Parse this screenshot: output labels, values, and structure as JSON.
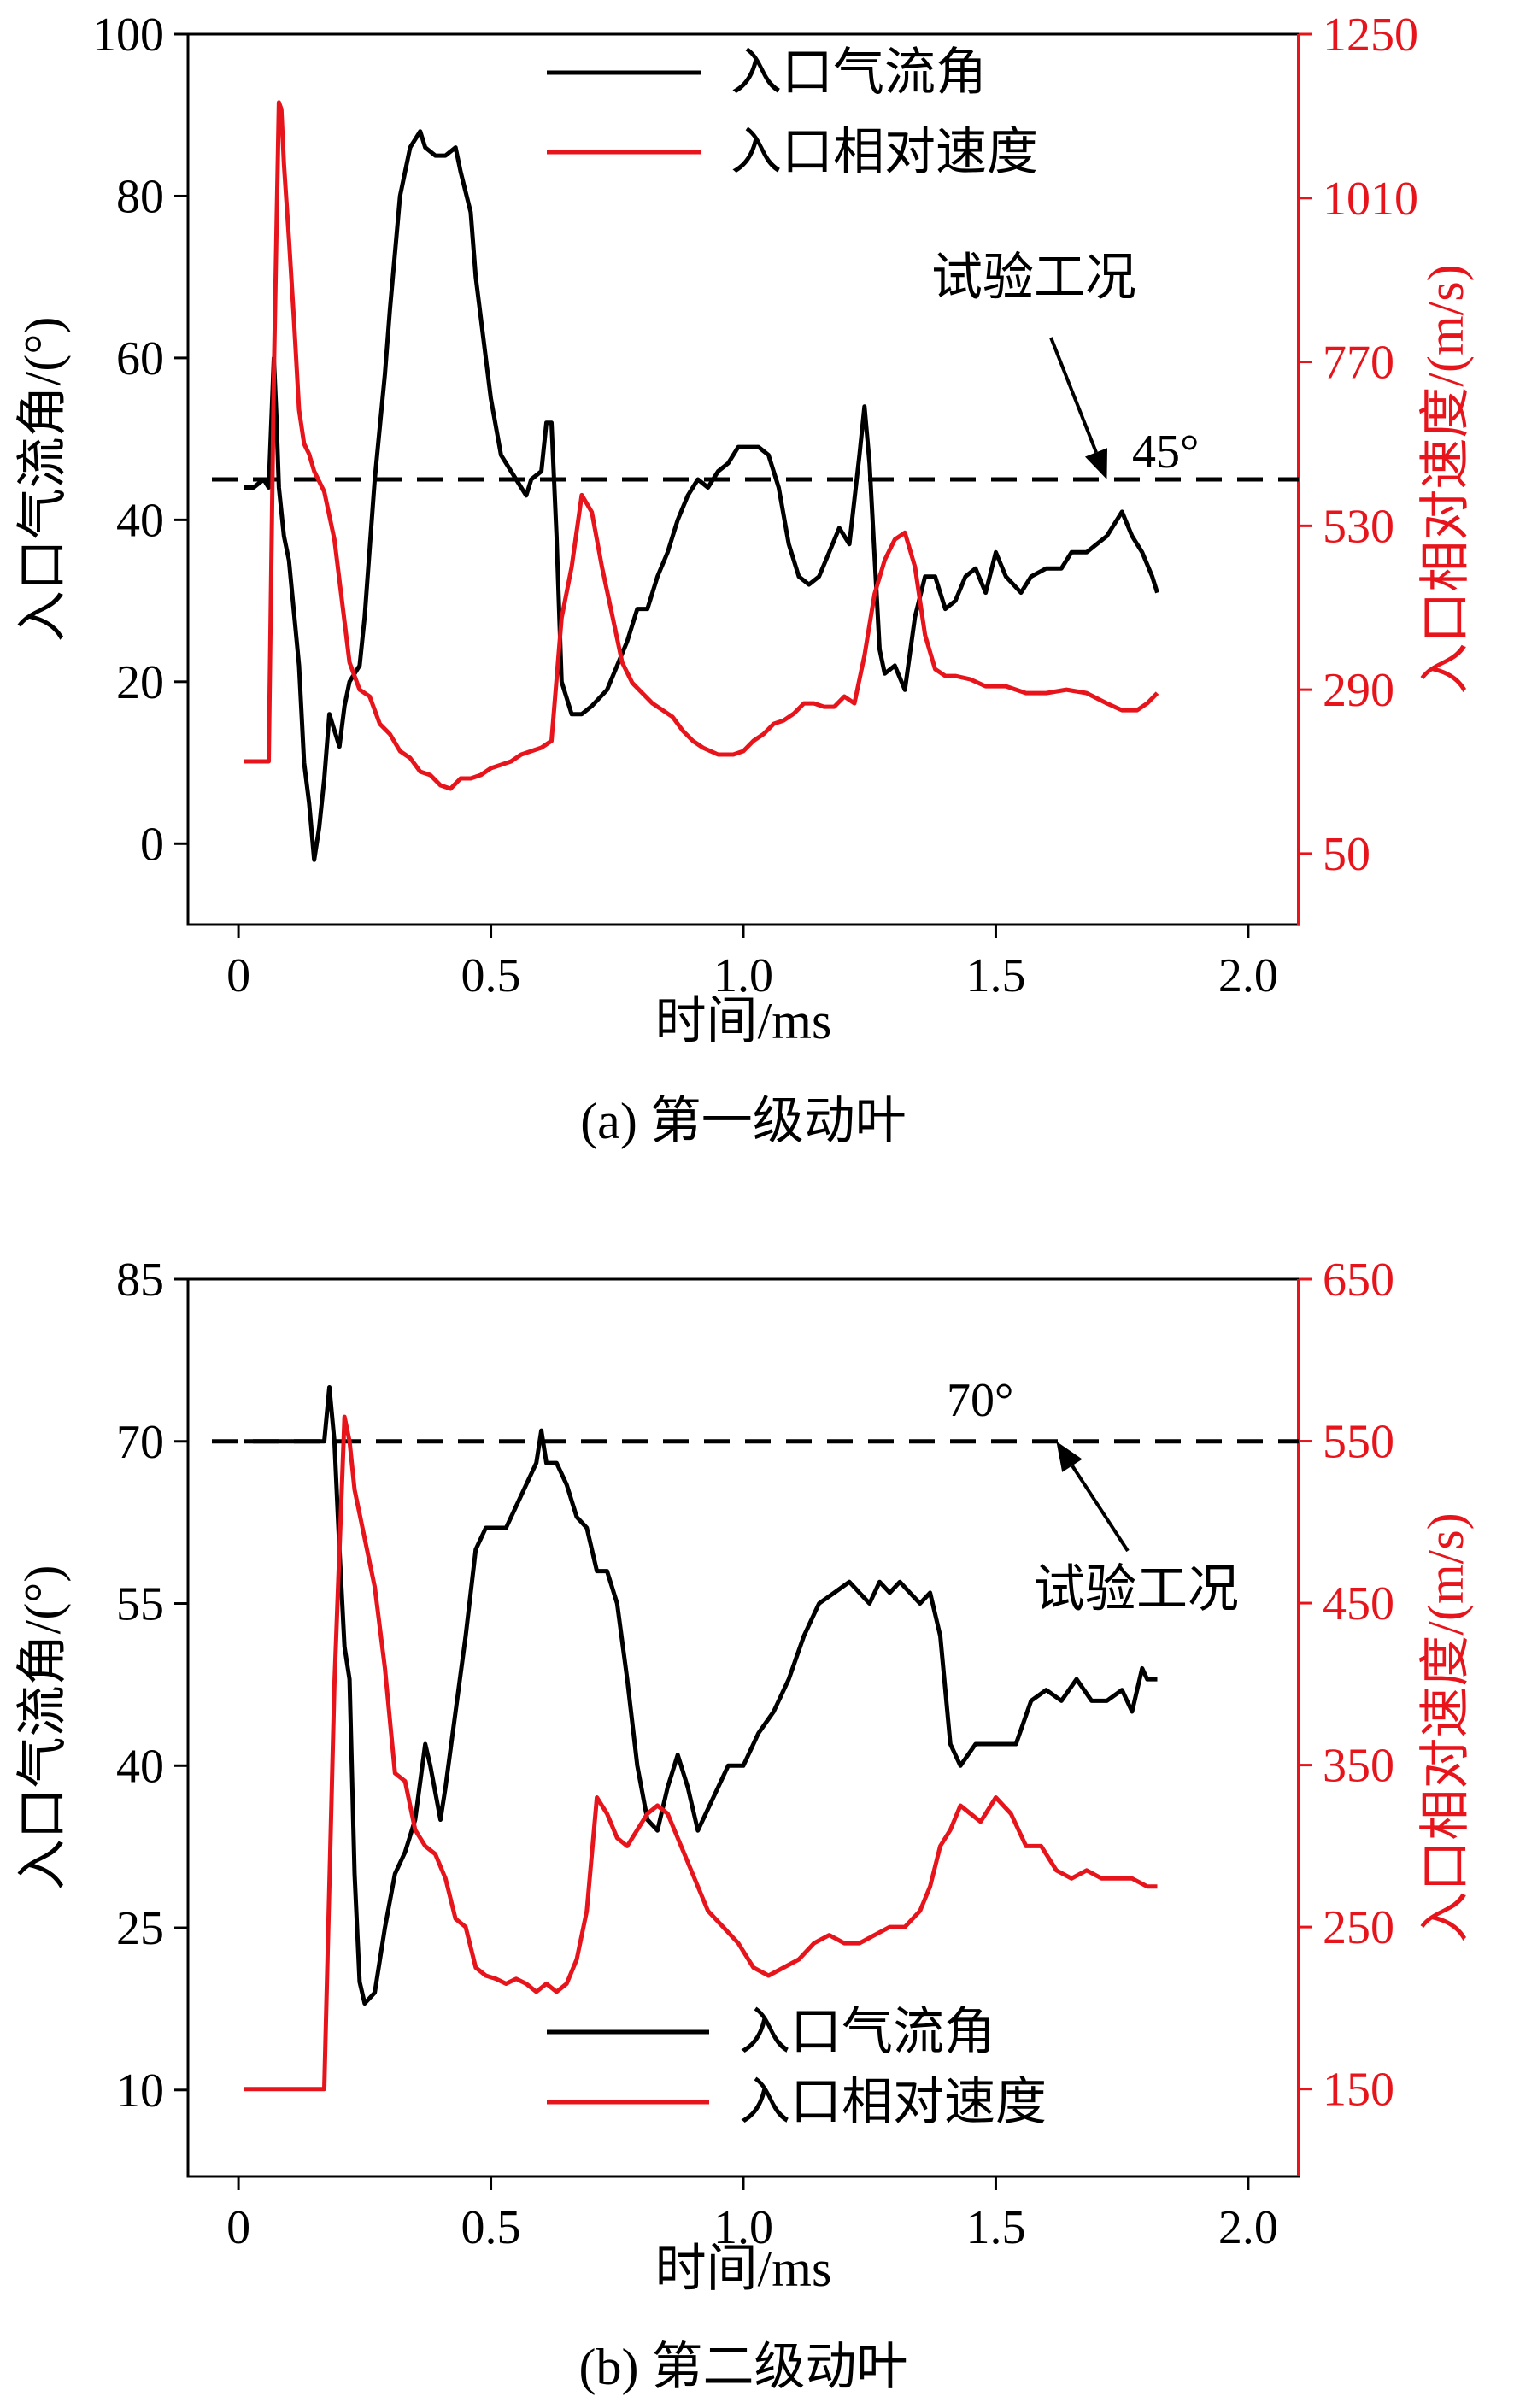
{
  "chart_data": [
    {
      "type": "line",
      "caption": "(a) 第一级动叶",
      "xlabel": "时间/ms",
      "ylabel": "入口气流角/(°)",
      "y2label": "入口相对速度/(m/s)",
      "xlim": [
        -0.1,
        2.1
      ],
      "ylim": [
        -10,
        100
      ],
      "y2lim": [
        -54,
        1250
      ],
      "xticks": [
        "0",
        "0.5",
        "1.0",
        "1.5",
        "2.0"
      ],
      "xtick_values": [
        0,
        0.5,
        1.0,
        1.5,
        2.0
      ],
      "yticks": [
        "0",
        "20",
        "40",
        "60",
        "80",
        "100"
      ],
      "ytick_values": [
        0,
        20,
        40,
        60,
        80,
        100
      ],
      "y2ticks": [
        "50",
        "290",
        "530",
        "770",
        "1010",
        "1250"
      ],
      "y2tick_values": [
        50,
        290,
        530,
        770,
        1010,
        1250
      ],
      "legend_position": "top-center",
      "colors": {
        "angle": "#000000",
        "velocity": "#e8141b",
        "axis2": "#e8141b"
      },
      "reference_line": {
        "y": 45,
        "label": "45°",
        "style": "dashed"
      },
      "annotation": {
        "text": "试验工况",
        "points_to": [
          1.72,
          45
        ]
      },
      "series": [
        {
          "name": "入口气流角",
          "axis": "left",
          "color": "#000000",
          "x": [
            0.01,
            0.03,
            0.05,
            0.06,
            0.065,
            0.07,
            0.075,
            0.08,
            0.09,
            0.1,
            0.12,
            0.13,
            0.14,
            0.15,
            0.16,
            0.17,
            0.18,
            0.19,
            0.2,
            0.21,
            0.22,
            0.23,
            0.24,
            0.25,
            0.27,
            0.29,
            0.3,
            0.32,
            0.34,
            0.36,
            0.37,
            0.39,
            0.41,
            0.43,
            0.44,
            0.46,
            0.47,
            0.49,
            0.5,
            0.52,
            0.55,
            0.57,
            0.58,
            0.6,
            0.61,
            0.62,
            0.63,
            0.64,
            0.66,
            0.68,
            0.7,
            0.73,
            0.75,
            0.77,
            0.79,
            0.81,
            0.83,
            0.85,
            0.87,
            0.89,
            0.91,
            0.93,
            0.95,
            0.97,
            0.99,
            1.01,
            1.03,
            1.05,
            1.07,
            1.09,
            1.11,
            1.13,
            1.15,
            1.17,
            1.19,
            1.21,
            1.23,
            1.24,
            1.25,
            1.27,
            1.28,
            1.3,
            1.32,
            1.34,
            1.36,
            1.38,
            1.4,
            1.42,
            1.44,
            1.46,
            1.48,
            1.5,
            1.52,
            1.55,
            1.57,
            1.6,
            1.63,
            1.65,
            1.68,
            1.7,
            1.72,
            1.75,
            1.77,
            1.79,
            1.81,
            1.82
          ],
          "y": [
            44,
            44,
            45,
            44,
            52,
            60,
            53,
            44,
            38,
            35,
            22,
            10,
            5,
            -2,
            2,
            8,
            16,
            14,
            12,
            17,
            20,
            21,
            22,
            28,
            45,
            58,
            66,
            80,
            86,
            88,
            86,
            85,
            85,
            86,
            83,
            78,
            70,
            60,
            55,
            48,
            45,
            43,
            45,
            46,
            52,
            52,
            38,
            20,
            16,
            16,
            17,
            19,
            22,
            25,
            29,
            29,
            33,
            36,
            40,
            43,
            45,
            44,
            46,
            47,
            49,
            49,
            49,
            48,
            44,
            37,
            33,
            32,
            33,
            36,
            39,
            37,
            48,
            54,
            47,
            24,
            21,
            22,
            19,
            28,
            33,
            33,
            29,
            30,
            33,
            34,
            31,
            36,
            33,
            31,
            33,
            34,
            34,
            36,
            36,
            37,
            38,
            41,
            38,
            36,
            33,
            31
          ]
        },
        {
          "name": "入口相对速度",
          "axis": "right",
          "color": "#e8141b",
          "x": [
            0.01,
            0.03,
            0.05,
            0.06,
            0.07,
            0.075,
            0.08,
            0.085,
            0.09,
            0.1,
            0.11,
            0.12,
            0.13,
            0.14,
            0.15,
            0.17,
            0.19,
            0.21,
            0.22,
            0.24,
            0.26,
            0.28,
            0.3,
            0.32,
            0.34,
            0.36,
            0.38,
            0.4,
            0.42,
            0.44,
            0.46,
            0.48,
            0.5,
            0.52,
            0.54,
            0.56,
            0.58,
            0.6,
            0.62,
            0.64,
            0.66,
            0.68,
            0.7,
            0.72,
            0.74,
            0.76,
            0.78,
            0.8,
            0.82,
            0.84,
            0.86,
            0.88,
            0.9,
            0.92,
            0.95,
            0.98,
            1.0,
            1.02,
            1.04,
            1.06,
            1.08,
            1.1,
            1.12,
            1.14,
            1.16,
            1.18,
            1.2,
            1.22,
            1.24,
            1.26,
            1.28,
            1.3,
            1.32,
            1.34,
            1.36,
            1.38,
            1.4,
            1.42,
            1.45,
            1.48,
            1.52,
            1.56,
            1.6,
            1.64,
            1.68,
            1.72,
            1.75,
            1.78,
            1.8,
            1.82
          ],
          "y": [
            185,
            185,
            185,
            185,
            750,
            950,
            1150,
            1140,
            1060,
            950,
            830,
            700,
            650,
            635,
            610,
            580,
            510,
            390,
            330,
            290,
            280,
            240,
            225,
            200,
            190,
            170,
            165,
            150,
            145,
            160,
            160,
            165,
            175,
            180,
            185,
            195,
            200,
            205,
            215,
            395,
            470,
            575,
            550,
            470,
            400,
            330,
            300,
            285,
            270,
            260,
            250,
            230,
            215,
            205,
            195,
            195,
            200,
            215,
            225,
            240,
            245,
            255,
            270,
            270,
            265,
            265,
            280,
            270,
            340,
            430,
            480,
            510,
            520,
            470,
            370,
            320,
            310,
            310,
            305,
            295,
            295,
            285,
            285,
            290,
            285,
            270,
            260,
            260,
            270,
            285
          ]
        }
      ]
    },
    {
      "type": "line",
      "caption": "(b) 第二级动叶",
      "xlabel": "时间/ms",
      "ylabel": "入口气流角/(°)",
      "y2label": "入口相对速度/(m/s)",
      "xlim": [
        -0.1,
        2.1
      ],
      "ylim": [
        2,
        85
      ],
      "y2lim": [
        96,
        650
      ],
      "xticks": [
        "0",
        "0.5",
        "1.0",
        "1.5",
        "2.0"
      ],
      "xtick_values": [
        0,
        0.5,
        1.0,
        1.5,
        2.0
      ],
      "yticks": [
        "10",
        "25",
        "40",
        "55",
        "70",
        "85"
      ],
      "ytick_values": [
        10,
        25,
        40,
        55,
        70,
        85
      ],
      "y2ticks": [
        "150",
        "250",
        "350",
        "450",
        "550",
        "650"
      ],
      "y2tick_values": [
        150,
        250,
        350,
        450,
        550,
        650
      ],
      "legend_position": "bottom-center",
      "colors": {
        "angle": "#000000",
        "velocity": "#e8141b",
        "axis2": "#e8141b"
      },
      "reference_line": {
        "y": 70,
        "label": "70°",
        "style": "dashed"
      },
      "annotation": {
        "text": "试验工况",
        "points_to": [
          1.62,
          70
        ]
      },
      "series": [
        {
          "name": "入口气流角",
          "axis": "left",
          "color": "#000000",
          "x": [
            0.01,
            0.05,
            0.1,
            0.15,
            0.17,
            0.18,
            0.19,
            0.2,
            0.21,
            0.22,
            0.23,
            0.24,
            0.25,
            0.27,
            0.29,
            0.31,
            0.33,
            0.35,
            0.37,
            0.38,
            0.4,
            0.41,
            0.43,
            0.45,
            0.47,
            0.49,
            0.51,
            0.53,
            0.55,
            0.57,
            0.59,
            0.6,
            0.61,
            0.63,
            0.65,
            0.67,
            0.69,
            0.71,
            0.73,
            0.75,
            0.77,
            0.79,
            0.81,
            0.83,
            0.85,
            0.87,
            0.89,
            0.91,
            0.93,
            0.95,
            0.97,
            1.0,
            1.03,
            1.06,
            1.09,
            1.12,
            1.15,
            1.18,
            1.21,
            1.23,
            1.25,
            1.27,
            1.29,
            1.31,
            1.33,
            1.35,
            1.37,
            1.39,
            1.41,
            1.43,
            1.46,
            1.5,
            1.54,
            1.57,
            1.6,
            1.63,
            1.66,
            1.69,
            1.72,
            1.75,
            1.77,
            1.79,
            1.8,
            1.82
          ],
          "y": [
            70,
            70,
            70,
            70,
            70,
            75,
            70,
            60,
            51,
            48,
            30,
            20,
            18,
            19,
            25,
            30,
            32,
            35,
            42,
            40,
            35,
            38,
            45,
            52,
            60,
            62,
            62,
            62,
            64,
            66,
            68,
            71,
            68,
            68,
            66,
            63,
            62,
            58,
            58,
            55,
            48,
            40,
            35,
            34,
            38,
            41,
            38,
            34,
            36,
            38,
            40,
            40,
            43,
            45,
            48,
            52,
            55,
            56,
            57,
            56,
            55,
            57,
            56,
            57,
            56,
            55,
            56,
            52,
            42,
            40,
            42,
            42,
            42,
            46,
            47,
            46,
            48,
            46,
            46,
            47,
            45,
            49,
            48,
            48
          ]
        },
        {
          "name": "入口相对速度",
          "axis": "right",
          "color": "#e8141b",
          "x": [
            0.01,
            0.05,
            0.1,
            0.15,
            0.17,
            0.19,
            0.21,
            0.22,
            0.23,
            0.25,
            0.27,
            0.29,
            0.31,
            0.33,
            0.35,
            0.37,
            0.39,
            0.41,
            0.43,
            0.45,
            0.47,
            0.49,
            0.51,
            0.53,
            0.55,
            0.57,
            0.59,
            0.61,
            0.63,
            0.65,
            0.67,
            0.69,
            0.71,
            0.73,
            0.75,
            0.77,
            0.79,
            0.81,
            0.83,
            0.85,
            0.87,
            0.89,
            0.91,
            0.93,
            0.96,
            0.99,
            1.02,
            1.05,
            1.08,
            1.11,
            1.14,
            1.17,
            1.2,
            1.23,
            1.26,
            1.29,
            1.32,
            1.35,
            1.37,
            1.39,
            1.41,
            1.43,
            1.45,
            1.47,
            1.5,
            1.53,
            1.56,
            1.59,
            1.62,
            1.65,
            1.68,
            1.71,
            1.74,
            1.77,
            1.8,
            1.82
          ],
          "y": [
            150,
            150,
            150,
            150,
            150,
            400,
            565,
            550,
            520,
            490,
            460,
            410,
            345,
            340,
            310,
            300,
            295,
            280,
            255,
            250,
            225,
            220,
            218,
            215,
            218,
            215,
            210,
            215,
            210,
            215,
            230,
            260,
            330,
            320,
            305,
            300,
            310,
            320,
            325,
            320,
            305,
            290,
            275,
            260,
            250,
            240,
            225,
            220,
            225,
            230,
            240,
            245,
            240,
            240,
            245,
            250,
            250,
            260,
            275,
            300,
            310,
            325,
            320,
            315,
            330,
            320,
            300,
            300,
            285,
            280,
            285,
            280,
            280,
            280,
            275,
            275
          ]
        }
      ]
    }
  ]
}
